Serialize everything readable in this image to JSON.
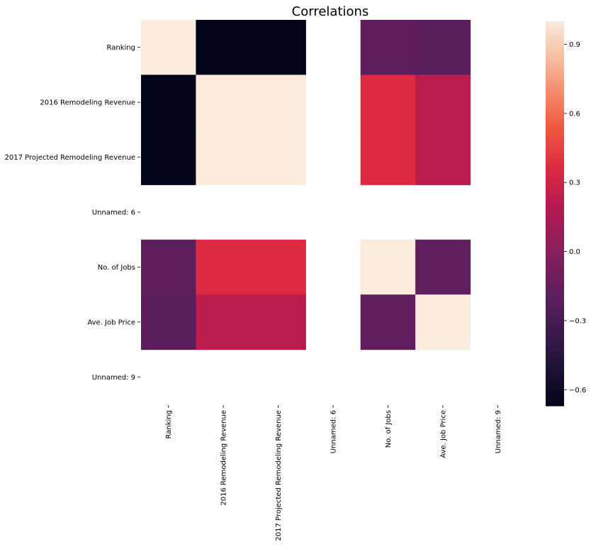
{
  "chart_data": {
    "type": "heatmap",
    "title": "Correlations",
    "row_labels": [
      "Ranking",
      "2016 Remodeling Revenue",
      "2017 Projected Remodeling Revenue",
      "Unnamed: 6",
      "No. of Jobs",
      "Ave. Job Price",
      "Unnamed: 9"
    ],
    "col_labels": [
      "Ranking",
      "2016 Remodeling Revenue",
      "2017 Projected Remodeling Revenue",
      "Unnamed: 6",
      "No. of Jobs",
      "Ave. Job Price",
      "Unnamed: 9"
    ],
    "values": [
      [
        1.0,
        -0.67,
        -0.67,
        null,
        -0.2,
        -0.22,
        null
      ],
      [
        -0.67,
        1.0,
        1.0,
        null,
        0.36,
        0.22,
        null
      ],
      [
        -0.67,
        1.0,
        1.0,
        null,
        0.36,
        0.22,
        null
      ],
      [
        null,
        null,
        null,
        null,
        null,
        null,
        null
      ],
      [
        -0.2,
        0.36,
        0.36,
        null,
        1.0,
        -0.18,
        null
      ],
      [
        -0.22,
        0.22,
        0.22,
        null,
        -0.18,
        1.0,
        null
      ],
      [
        null,
        null,
        null,
        null,
        null,
        null,
        null
      ]
    ],
    "colorbar": {
      "vmin": -0.67,
      "vmax": 1.0,
      "ticks": [
        0.9,
        0.6,
        0.3,
        0.0,
        -0.3,
        -0.6
      ],
      "tick_labels": [
        "0.9",
        "0.6",
        "0.3",
        "0.0",
        "−0.3",
        "−0.6"
      ]
    },
    "colormap": "rocket"
  }
}
